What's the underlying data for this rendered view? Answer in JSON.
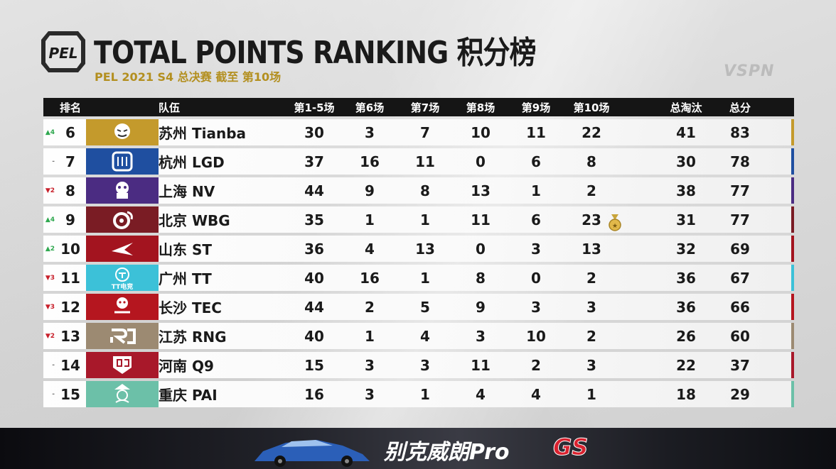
{
  "header": {
    "logo_text": "PEL",
    "title": "TOTAL POINTS RANKING 积分榜",
    "subtitle": "PEL 2021 S4 总决赛 截至 第10场",
    "watermark": "VSPN"
  },
  "columns": {
    "rank": "排名",
    "team": "队伍",
    "g1_5": "第1-5场",
    "g6": "第6场",
    "g7": "第7场",
    "g8": "第8场",
    "g9": "第9场",
    "g10": "第10场",
    "elims": "总淘汰",
    "total": "总分"
  },
  "rows": [
    {
      "change": "▲4",
      "dir": "up",
      "rank": "6",
      "team": "苏州 Tianba",
      "logo_bg": "#c49a2c",
      "logo": "tianba",
      "accent": "#c49a2c",
      "g1_5": "30",
      "g6": "3",
      "g7": "7",
      "g8": "10",
      "g9": "11",
      "g10": "22",
      "elims": "41",
      "total": "83"
    },
    {
      "change": "-",
      "dir": "same",
      "rank": "7",
      "team": "杭州 LGD",
      "logo_bg": "#1f4fa0",
      "logo": "lgd",
      "accent": "#1f4fa0",
      "g1_5": "37",
      "g6": "16",
      "g7": "11",
      "g8": "0",
      "g9": "6",
      "g10": "8",
      "elims": "30",
      "total": "78"
    },
    {
      "change": "▼2",
      "dir": "down",
      "rank": "8",
      "team": "上海 NV",
      "logo_bg": "#4b2c82",
      "logo": "nv",
      "accent": "#4b2c82",
      "g1_5": "44",
      "g6": "9",
      "g7": "8",
      "g8": "13",
      "g9": "1",
      "g10": "2",
      "elims": "38",
      "total": "77"
    },
    {
      "change": "▲4",
      "dir": "up",
      "rank": "9",
      "team": "北京 WBG",
      "logo_bg": "#7a1c24",
      "logo": "wbg",
      "accent": "#7a1c24",
      "g1_5": "35",
      "g6": "1",
      "g7": "1",
      "g8": "11",
      "g9": "6",
      "g10": "23",
      "medal": true,
      "elims": "31",
      "total": "77"
    },
    {
      "change": "▲2",
      "dir": "up",
      "rank": "10",
      "team": "山东 ST",
      "logo_bg": "#a3141f",
      "logo": "st",
      "accent": "#a3141f",
      "g1_5": "36",
      "g6": "4",
      "g7": "13",
      "g8": "0",
      "g9": "3",
      "g10": "13",
      "elims": "32",
      "total": "69"
    },
    {
      "change": "▼3",
      "dir": "down",
      "rank": "11",
      "team": "广州 TT",
      "logo_bg": "#3cc1d8",
      "logo": "tt",
      "logo_text": "TT电竞",
      "accent": "#3cc1d8",
      "g1_5": "40",
      "g6": "16",
      "g7": "1",
      "g8": "8",
      "g9": "0",
      "g10": "2",
      "elims": "36",
      "total": "67"
    },
    {
      "change": "▼3",
      "dir": "down",
      "rank": "12",
      "team": "长沙 TEC",
      "logo_bg": "#b5161f",
      "logo": "tec",
      "accent": "#b5161f",
      "g1_5": "44",
      "g6": "2",
      "g7": "5",
      "g8": "9",
      "g9": "3",
      "g10": "3",
      "elims": "36",
      "total": "66"
    },
    {
      "change": "▼2",
      "dir": "down",
      "rank": "13",
      "team": "江苏 RNG",
      "logo_bg": "#9c8a72",
      "logo": "rng",
      "accent": "#9c8a72",
      "g1_5": "40",
      "g6": "1",
      "g7": "4",
      "g8": "3",
      "g9": "10",
      "g10": "2",
      "elims": "26",
      "total": "60"
    },
    {
      "change": "-",
      "dir": "same",
      "rank": "14",
      "team": "河南 Q9",
      "logo_bg": "#a8182a",
      "logo": "q9",
      "accent": "#a8182a",
      "g1_5": "15",
      "g6": "3",
      "g7": "3",
      "g8": "11",
      "g9": "2",
      "g10": "3",
      "elims": "22",
      "total": "37"
    },
    {
      "change": "-",
      "dir": "same",
      "rank": "15",
      "team": "重庆 PAI",
      "logo_bg": "#6cc0a8",
      "logo": "pai",
      "accent": "#6cc0a8",
      "g1_5": "16",
      "g6": "3",
      "g7": "1",
      "g8": "4",
      "g9": "4",
      "g10": "1",
      "elims": "18",
      "total": "29"
    }
  ],
  "footer": {
    "ad_text": "别克威朗Pro",
    "ad_badge": "GS"
  }
}
